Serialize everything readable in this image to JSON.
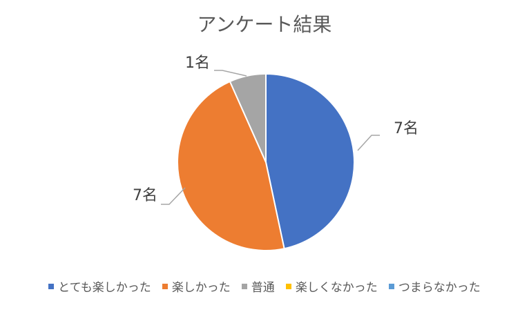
{
  "chart_data": {
    "type": "pie",
    "title": "アンケート結果",
    "categories": [
      "とても楽しかった",
      "楽しかった",
      "普通",
      "楽しくなかった",
      "つまらなかった"
    ],
    "values": [
      7,
      7,
      1,
      0,
      0
    ],
    "data_labels": [
      "7名",
      "7名",
      "1名",
      "",
      ""
    ],
    "colors": [
      "#4472C4",
      "#ED7D31",
      "#A5A5A5",
      "#FFC000",
      "#5B9BD5"
    ],
    "legend_position": "bottom"
  }
}
